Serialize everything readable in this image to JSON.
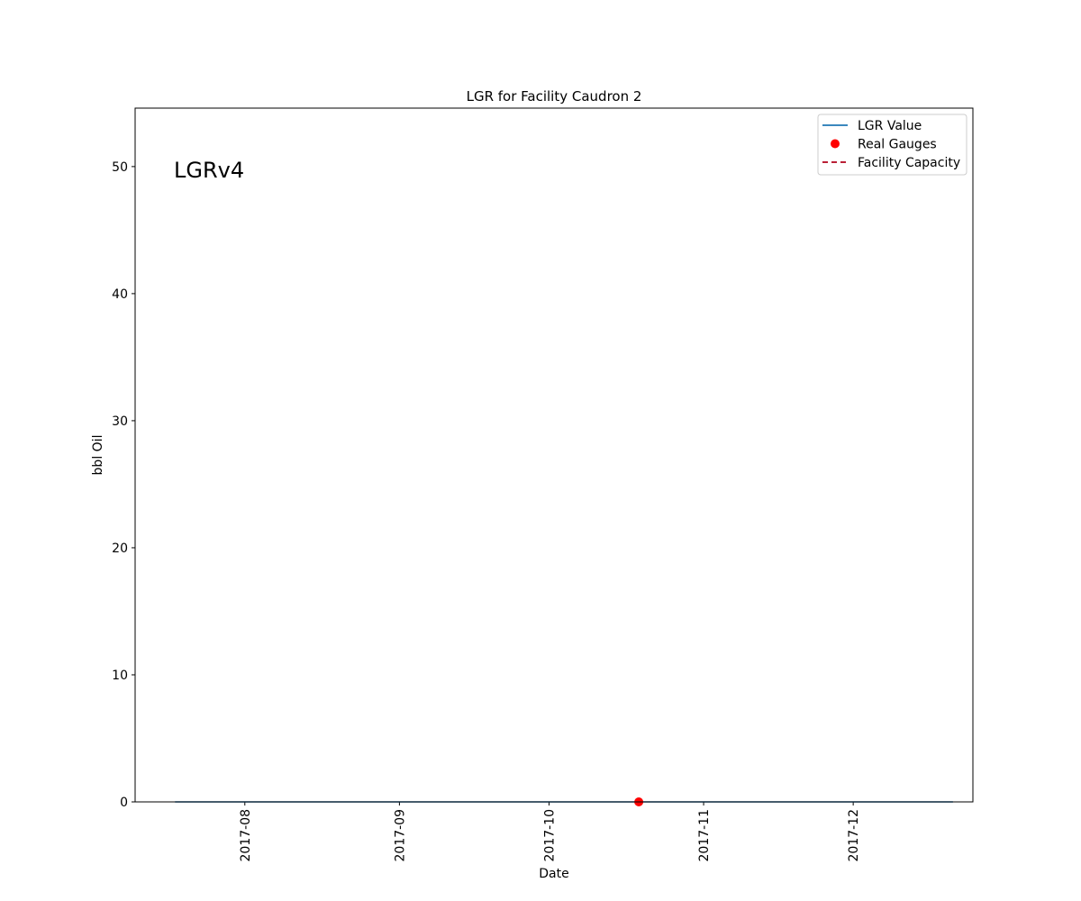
{
  "chart_data": {
    "type": "line",
    "title": "LGR for Facility Caudron 2",
    "xlabel": "Date",
    "ylabel": "bbl Oil",
    "annotation": "LGRv4",
    "x_axis_type": "date",
    "xlim": [
      "2017-07-10",
      "2017-12-25"
    ],
    "ylim": [
      0,
      54.6
    ],
    "x_ticks": [
      "2017-08",
      "2017-09",
      "2017-10",
      "2017-11",
      "2017-12"
    ],
    "y_ticks": [
      0,
      10,
      20,
      30,
      40,
      50
    ],
    "grid": false,
    "legend_position": "top-right",
    "series": [
      {
        "name": "LGR Value",
        "kind": "line",
        "color": "#1f77b4",
        "points": [
          {
            "x": "2017-07-18",
            "y": 0
          },
          {
            "x": "2017-12-21",
            "y": 0
          }
        ]
      },
      {
        "name": "Real Gauges",
        "kind": "scatter",
        "color": "#ff0000",
        "points": [
          {
            "x": "2017-10-19",
            "y": 0
          }
        ]
      },
      {
        "name": "Facility Capacity",
        "kind": "dashed-line",
        "color": "#b0001a",
        "points": []
      }
    ]
  }
}
